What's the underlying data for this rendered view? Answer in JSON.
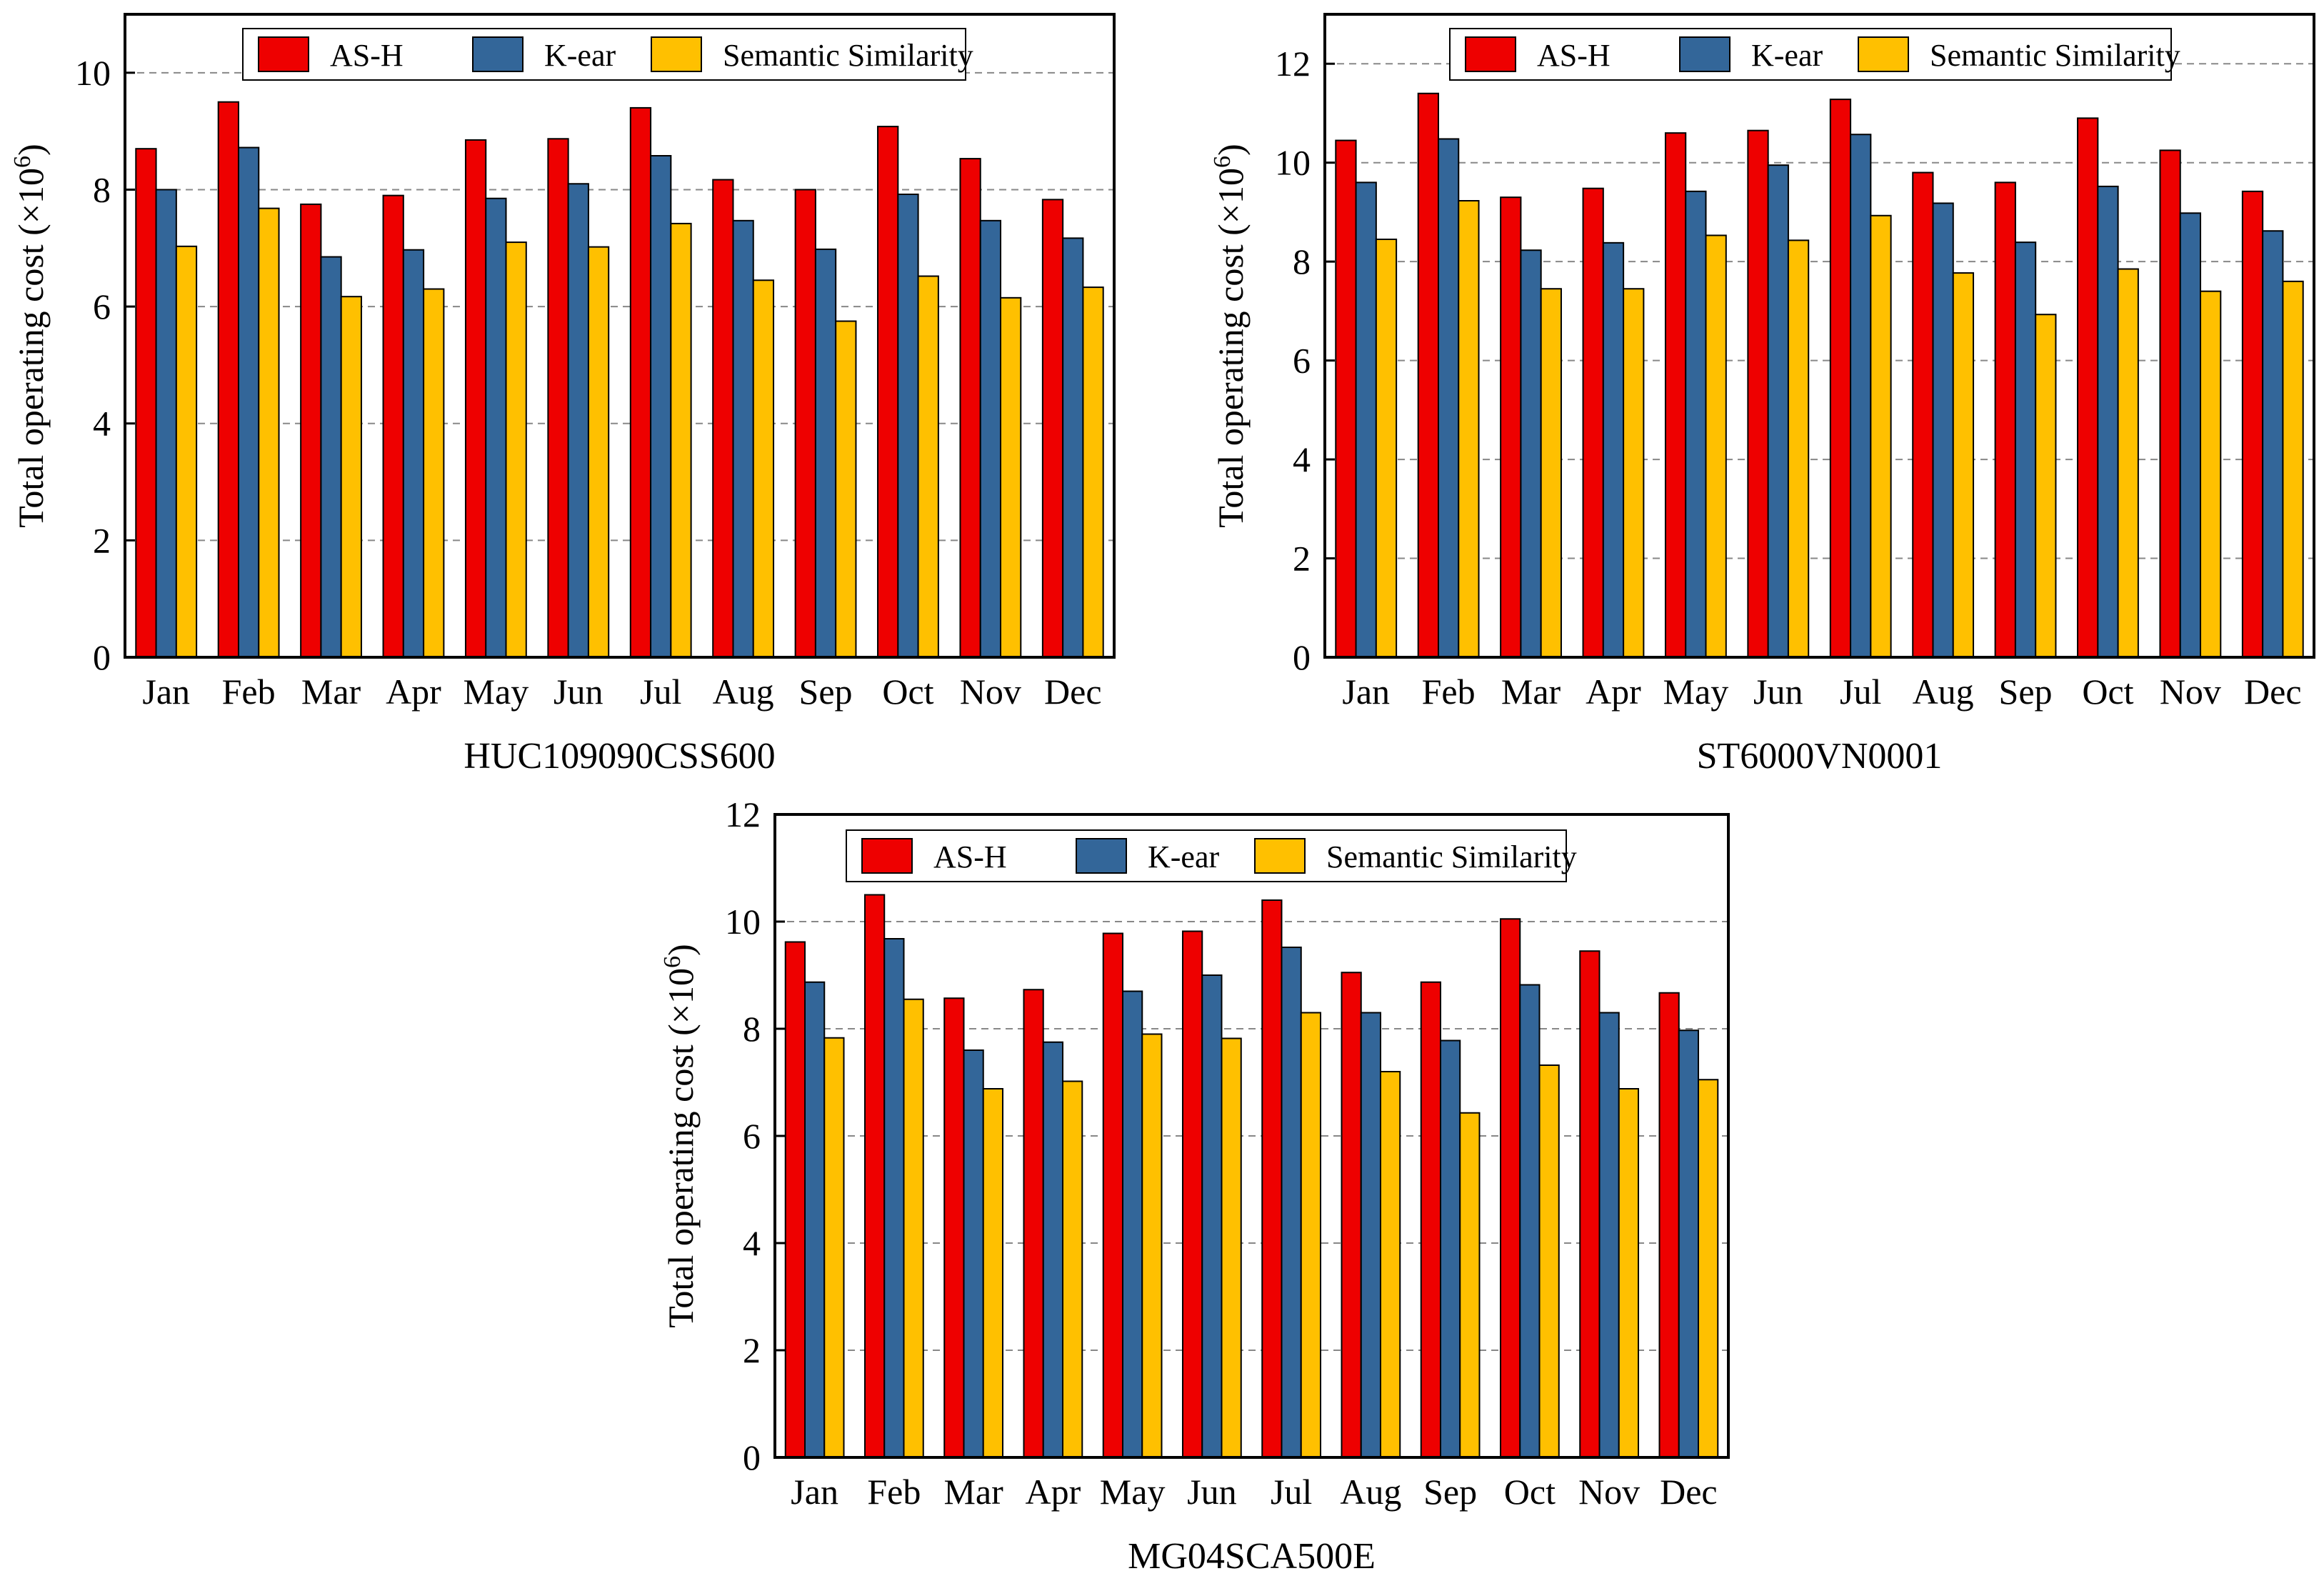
{
  "figure": {
    "series_colors": {
      "AS-H": "#EE0000",
      "K-ear": "#336699",
      "Semantic Similarity": "#FFC000"
    }
  },
  "chart_data": [
    {
      "type": "bar",
      "caption": "HUC109090CSS600",
      "ylabel": "Total operating cost (×10",
      "ylabel_sup": "6",
      "ylabel_close": ")",
      "ylim": [
        0,
        11
      ],
      "yticks": [
        0,
        2,
        4,
        6,
        8,
        10
      ],
      "grid": true,
      "legend": "top",
      "categories": [
        "Jan",
        "Feb",
        "Mar",
        "Apr",
        "May",
        "Jun",
        "Jul",
        "Aug",
        "Sep",
        "Oct",
        "Nov",
        "Dec"
      ],
      "series": [
        {
          "name": "AS-H",
          "values": [
            8.7,
            9.5,
            7.75,
            7.9,
            8.85,
            8.87,
            9.4,
            8.17,
            8.0,
            9.08,
            8.53,
            7.83
          ]
        },
        {
          "name": "K-ear",
          "values": [
            8.0,
            8.72,
            6.85,
            6.97,
            7.85,
            8.1,
            8.58,
            7.47,
            6.98,
            7.92,
            7.47,
            7.17
          ]
        },
        {
          "name": "Semantic Similarity",
          "values": [
            7.03,
            7.68,
            6.17,
            6.3,
            7.1,
            7.02,
            7.42,
            6.45,
            5.75,
            6.52,
            6.15,
            6.33
          ]
        }
      ]
    },
    {
      "type": "bar",
      "caption": "ST6000VN0001",
      "ylabel": "Total operating cost (×10",
      "ylabel_sup": "6",
      "ylabel_close": ")",
      "ylim": [
        0,
        13
      ],
      "yticks": [
        0,
        2,
        4,
        6,
        8,
        10,
        12
      ],
      "grid": true,
      "legend": "top",
      "categories": [
        "Jan",
        "Feb",
        "Mar",
        "Apr",
        "May",
        "Jun",
        "Jul",
        "Aug",
        "Sep",
        "Oct",
        "Nov",
        "Dec"
      ],
      "series": [
        {
          "name": "AS-H",
          "values": [
            10.45,
            11.4,
            9.3,
            9.48,
            10.6,
            10.65,
            11.28,
            9.8,
            9.6,
            10.9,
            10.25,
            9.42
          ]
        },
        {
          "name": "K-ear",
          "values": [
            9.6,
            10.48,
            8.23,
            8.38,
            9.42,
            9.95,
            10.57,
            9.18,
            8.39,
            9.52,
            8.98,
            8.62
          ]
        },
        {
          "name": "Semantic Similarity",
          "values": [
            8.45,
            9.23,
            7.45,
            7.45,
            8.53,
            8.43,
            8.93,
            7.77,
            6.93,
            7.85,
            7.4,
            7.6
          ]
        }
      ]
    },
    {
      "type": "bar",
      "caption": "MG04SCA500E",
      "ylabel": "Total operating cost (×10",
      "ylabel_sup": "6",
      "ylabel_close": ")",
      "ylim": [
        0,
        12
      ],
      "yticks": [
        0,
        2,
        4,
        6,
        8,
        10,
        12
      ],
      "grid": true,
      "legend": "top",
      "categories": [
        "Jan",
        "Feb",
        "Mar",
        "Apr",
        "May",
        "Jun",
        "Jul",
        "Aug",
        "Sep",
        "Oct",
        "Nov",
        "Dec"
      ],
      "series": [
        {
          "name": "AS-H",
          "values": [
            9.62,
            10.5,
            8.57,
            8.73,
            9.78,
            9.82,
            10.4,
            9.05,
            8.87,
            10.05,
            9.45,
            8.67
          ]
        },
        {
          "name": "K-ear",
          "values": [
            8.87,
            9.68,
            7.6,
            7.75,
            8.7,
            9.0,
            9.52,
            8.3,
            7.78,
            8.82,
            8.3,
            7.97
          ]
        },
        {
          "name": "Semantic Similarity",
          "values": [
            7.83,
            8.55,
            6.88,
            7.02,
            7.9,
            7.82,
            8.3,
            7.2,
            6.43,
            7.32,
            6.88,
            7.05
          ]
        }
      ]
    }
  ]
}
